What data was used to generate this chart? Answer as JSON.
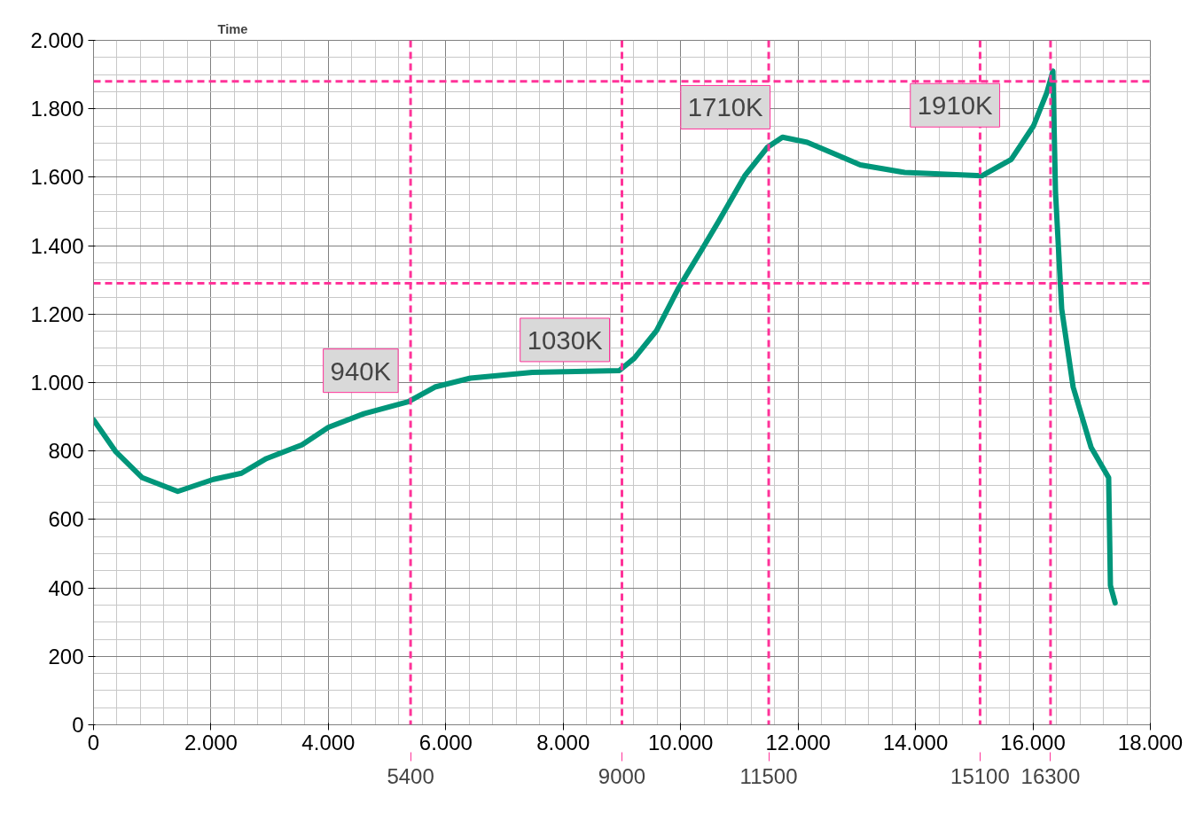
{
  "chart_data": {
    "type": "line",
    "x": [
      0,
      378,
      830,
      1435,
      2040,
      2520,
      2945,
      3550,
      4000,
      4605,
      5360,
      5815,
      6420,
      7475,
      8955,
      9210,
      9590,
      9970,
      10345,
      10650,
      11100,
      11475,
      11735,
      12155,
      12610,
      13060,
      13815,
      15130,
      15630,
      16010,
      16235,
      16340,
      16385,
      16490,
      16685,
      16990,
      17290,
      17320,
      17400
    ],
    "series": [
      {
        "color": "#00967a",
        "values": [
          891,
          798,
          722,
          682,
          717,
          735,
          778,
          818,
          869,
          909,
          944,
          987,
          1013,
          1030,
          1035,
          1071,
          1152,
          1278,
          1384,
          1472,
          1606,
          1687,
          1717,
          1702,
          1669,
          1636,
          1614,
          1604,
          1652,
          1750,
          1846,
          1910,
          1556,
          1215,
          987,
          811,
          722,
          407,
          356
        ]
      }
    ],
    "xlim": [
      0,
      18000
    ],
    "xticks": [
      0,
      {
        "value": 2000,
        "label": "2.000"
      },
      {
        "value": 4000,
        "label": "4.000"
      },
      {
        "value": 6000,
        "label": "6.000"
      },
      {
        "value": 8000,
        "label": "8.000"
      },
      {
        "value": 10000,
        "label": "10.000"
      },
      {
        "value": 12000,
        "label": "12.000"
      },
      {
        "value": 14000,
        "label": "14.000"
      },
      {
        "value": 16000,
        "label": "16.000"
      },
      {
        "value": 18000,
        "label": "18.000"
      }
    ],
    "ylim": [
      0,
      2000
    ],
    "yticks": [
      0,
      200,
      400,
      600,
      800,
      {
        "value": 1000,
        "label": "1.000"
      },
      {
        "value": 1200,
        "label": "1.200"
      },
      {
        "value": 1400,
        "label": "1.400"
      },
      {
        "value": 1600,
        "label": "1.600"
      },
      {
        "value": 1800,
        "label": "1.800"
      },
      {
        "value": 2000,
        "label": "2.000"
      }
    ],
    "grid": true,
    "line_style": "solid",
    "ref_lines": [
      {
        "axis": "y",
        "value": 1880,
        "color": "#ff3399",
        "line_style": "dashed"
      },
      {
        "axis": "y",
        "value": 1290,
        "color": "#ff3399",
        "line_style": "dashed"
      },
      {
        "axis": "x",
        "value": 5400,
        "label": "5400",
        "color": "#ff3399",
        "line_style": "dashed"
      },
      {
        "axis": "x",
        "value": 9000,
        "label": "9000",
        "color": "#ff3399",
        "line_style": "dashed"
      },
      {
        "axis": "x",
        "value": 11500,
        "label": "11500",
        "color": "#ff3399",
        "line_style": "dashed"
      },
      {
        "axis": "x",
        "value": 15100,
        "label": "15100",
        "color": "#ff3399",
        "line_style": "dashed"
      },
      {
        "axis": "x",
        "value": 16300,
        "label": "16300",
        "color": "#ff3399",
        "line_style": "dashed"
      }
    ],
    "annotations": [
      "Time",
      {
        "text": "940K",
        "x": 5400,
        "y": 940
      },
      {
        "text": "1030K",
        "x": 9000,
        "y": 1030
      },
      {
        "text": "1710K",
        "x": 11735,
        "y": 1710
      },
      {
        "text": "1910K",
        "x": 16340,
        "y": 1910
      }
    ]
  }
}
